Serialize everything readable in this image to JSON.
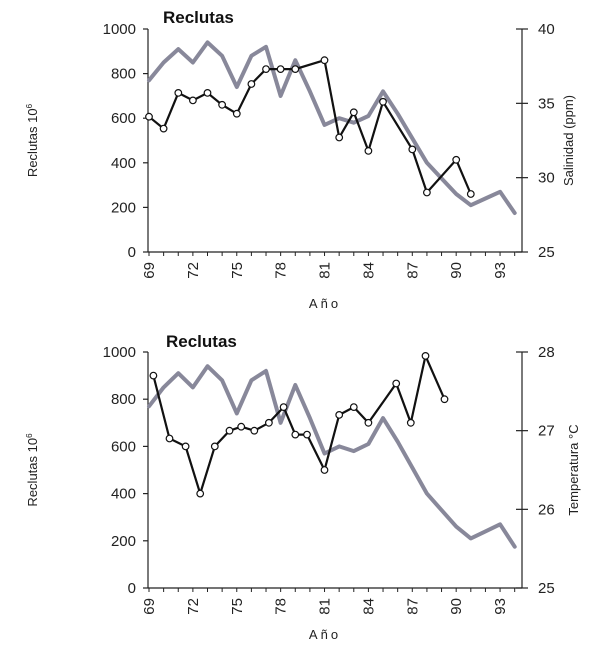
{
  "chart_data": [
    {
      "type": "line",
      "title": "Reclutas",
      "xlabel": "Año",
      "ylabel": "Reclutas 10",
      "ylabel_sup": "6",
      "y2label": "Salinidad (ppm)",
      "xlim": [
        69,
        94.5
      ],
      "ylim": [
        0,
        1000
      ],
      "y2lim": [
        25,
        40
      ],
      "xticks": [
        "69",
        "72",
        "75",
        "78",
        "81",
        "84",
        "87",
        "90",
        "93"
      ],
      "yticks": [
        "0",
        "200",
        "400",
        "600",
        "800",
        "1000"
      ],
      "y2ticks": [
        "25",
        "30",
        "35",
        "40"
      ],
      "colors": {
        "reclutas": "#88889a",
        "secondary": "#111111"
      },
      "series": [
        {
          "axis": "left",
          "style": "thick-gray",
          "x": [
            69,
            70,
            71,
            72,
            73,
            74,
            75,
            76,
            77,
            78,
            79,
            80,
            81,
            82,
            83,
            84,
            85,
            86,
            87,
            88,
            89,
            90,
            91,
            92,
            93,
            94
          ],
          "y": [
            770,
            850,
            910,
            850,
            940,
            880,
            740,
            880,
            920,
            700,
            860,
            720,
            570,
            600,
            580,
            610,
            720,
            620,
            510,
            400,
            330,
            260,
            210,
            240,
            270,
            175
          ]
        },
        {
          "axis": "right",
          "style": "black-markers",
          "x": [
            69,
            70,
            71,
            72,
            73,
            74,
            75,
            76,
            77,
            78,
            79,
            81,
            82,
            83,
            84,
            85,
            87,
            88,
            90,
            91
          ],
          "y": [
            34.1,
            33.3,
            35.7,
            35.2,
            35.7,
            34.9,
            34.3,
            36.3,
            37.3,
            37.3,
            37.3,
            37.9,
            32.7,
            34.4,
            31.8,
            35.1,
            31.9,
            29.0,
            31.2,
            28.9
          ]
        }
      ]
    },
    {
      "type": "line",
      "title": "Reclutas",
      "xlabel": "Año",
      "ylabel": "Reclutas 10",
      "ylabel_sup": "6",
      "y2label": "Temperatura °C",
      "xlim": [
        69,
        94.5
      ],
      "ylim": [
        0,
        1000
      ],
      "y2lim": [
        25,
        28
      ],
      "xticks": [
        "69",
        "72",
        "75",
        "78",
        "81",
        "84",
        "87",
        "90",
        "93"
      ],
      "yticks": [
        "0",
        "200",
        "400",
        "600",
        "800",
        "1000"
      ],
      "y2ticks": [
        "25",
        "26",
        "27",
        "28"
      ],
      "colors": {
        "reclutas": "#88889a",
        "secondary": "#111111"
      },
      "series": [
        {
          "axis": "left",
          "style": "thick-gray",
          "x": [
            69,
            70,
            71,
            72,
            73,
            74,
            75,
            76,
            77,
            78,
            79,
            80,
            81,
            82,
            83,
            84,
            85,
            86,
            87,
            88,
            89,
            90,
            91,
            92,
            93,
            94
          ],
          "y": [
            770,
            850,
            910,
            850,
            940,
            880,
            740,
            880,
            920,
            700,
            860,
            720,
            570,
            600,
            580,
            610,
            720,
            620,
            510,
            400,
            330,
            260,
            210,
            240,
            270,
            175
          ]
        },
        {
          "axis": "right",
          "style": "black-markers",
          "x": [
            69.3,
            70.4,
            71.5,
            72.5,
            73.5,
            74.5,
            75.3,
            76.2,
            77.2,
            78.2,
            79.0,
            79.8,
            81.0,
            82.0,
            83.0,
            84.0,
            85.9,
            86.9,
            87.9,
            89.2
          ],
          "y": [
            27.7,
            26.9,
            26.8,
            26.2,
            26.8,
            27.0,
            27.05,
            27.0,
            27.1,
            27.3,
            26.95,
            26.95,
            26.5,
            27.2,
            27.3,
            27.1,
            27.6,
            27.1,
            27.95,
            27.4
          ]
        }
      ]
    }
  ]
}
